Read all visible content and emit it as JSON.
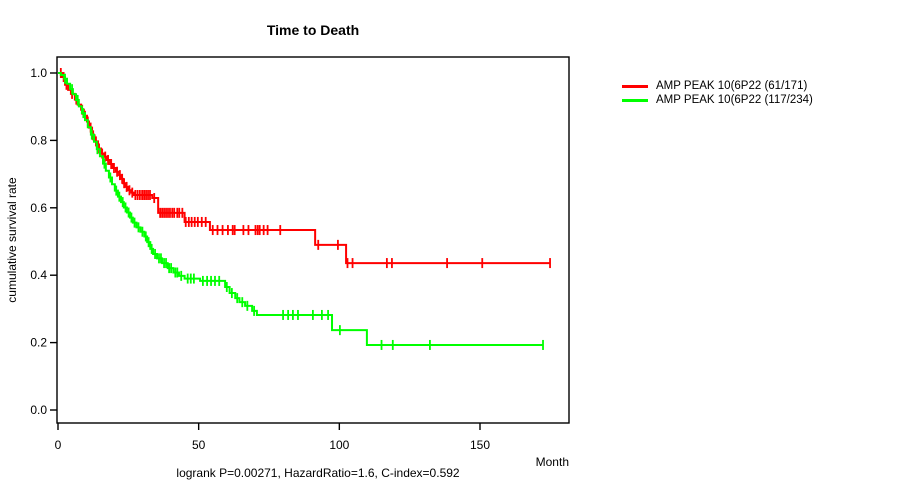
{
  "chart_data": {
    "type": "line",
    "subtype": "kaplan-meier-step",
    "title": "Time to Death",
    "xlabel": "Month",
    "ylabel": "cumulative survival rate",
    "xticks": [
      0,
      50,
      100,
      150
    ],
    "yticks": [
      0.0,
      0.2,
      0.4,
      0.6,
      0.8,
      1.0
    ],
    "xlim": [
      0,
      182
    ],
    "ylim": [
      0.0,
      1.0
    ],
    "grid": false,
    "legend_position": "right-outside",
    "annotation": "logrank P=0.00271, HazardRatio=1.6, C-index=0.592",
    "series": [
      {
        "name": "AMP PEAK 10(6P22 (61/171)",
        "color": "#ff0000",
        "end": 174.9,
        "steps": [
          [
            0,
            1.0
          ],
          [
            1.4,
            0.988
          ],
          [
            2.5,
            0.965
          ],
          [
            3.6,
            0.95
          ],
          [
            4.6,
            0.938
          ],
          [
            6.0,
            0.921
          ],
          [
            7.0,
            0.906
          ],
          [
            8.2,
            0.891
          ],
          [
            9.2,
            0.873
          ],
          [
            10.3,
            0.856
          ],
          [
            11.0,
            0.838
          ],
          [
            12.1,
            0.815
          ],
          [
            13.0,
            0.797
          ],
          [
            14.2,
            0.776
          ],
          [
            15.3,
            0.761
          ],
          [
            16.3,
            0.752
          ],
          [
            17.4,
            0.742
          ],
          [
            18.5,
            0.73
          ],
          [
            19.5,
            0.718
          ],
          [
            20.6,
            0.707
          ],
          [
            21.7,
            0.697
          ],
          [
            22.4,
            0.686
          ],
          [
            23.1,
            0.673
          ],
          [
            24.0,
            0.662
          ],
          [
            25.0,
            0.652
          ],
          [
            26.0,
            0.645
          ],
          [
            27.0,
            0.638
          ],
          [
            33.5,
            0.629
          ],
          [
            35.6,
            0.585
          ],
          [
            45.0,
            0.558
          ],
          [
            54.0,
            0.534
          ],
          [
            91.4,
            0.49
          ],
          [
            102.4,
            0.436
          ]
        ],
        "censors": [
          1.0,
          2.0,
          3.0,
          5.0,
          6.5,
          8.6,
          9.6,
          10.6,
          11.6,
          12.5,
          13.5,
          14.6,
          15.7,
          16.8,
          17.8,
          18.9,
          19.9,
          21.0,
          22.0,
          22.8,
          23.5,
          24.4,
          25.4,
          26.4,
          27.5,
          28.3,
          29.1,
          29.9,
          30.6,
          31.3,
          32.0,
          32.7,
          34.2,
          36.3,
          37.0,
          37.7,
          38.4,
          39.1,
          39.8,
          40.6,
          41.3,
          42.4,
          43.1,
          44.2,
          45.4,
          46.5,
          47.5,
          48.6,
          49.7,
          51.1,
          52.5,
          55.0,
          56.7,
          58.5,
          60.4,
          62.1,
          62.8,
          65.9,
          67.7,
          70.2,
          71.0,
          71.7,
          73.1,
          74.5,
          79.0,
          92.5,
          99.5,
          102.9,
          104.7,
          116.9,
          118.7,
          138.3,
          150.8,
          174.9
        ]
      },
      {
        "name": "AMP PEAK 10(6P22 (117/234)",
        "color": "#00ff00",
        "end": 172.4,
        "steps": [
          [
            0,
            1.0
          ],
          [
            1.0,
            0.994
          ],
          [
            2.2,
            0.983
          ],
          [
            3.2,
            0.968
          ],
          [
            4.3,
            0.952
          ],
          [
            5.3,
            0.937
          ],
          [
            6.4,
            0.92
          ],
          [
            7.4,
            0.901
          ],
          [
            8.5,
            0.881
          ],
          [
            9.6,
            0.86
          ],
          [
            10.6,
            0.839
          ],
          [
            11.7,
            0.817
          ],
          [
            12.8,
            0.796
          ],
          [
            13.8,
            0.774
          ],
          [
            14.9,
            0.753
          ],
          [
            16.0,
            0.731
          ],
          [
            17.0,
            0.71
          ],
          [
            18.1,
            0.69
          ],
          [
            19.2,
            0.67
          ],
          [
            20.2,
            0.651
          ],
          [
            21.3,
            0.633
          ],
          [
            22.4,
            0.617
          ],
          [
            23.4,
            0.601
          ],
          [
            24.5,
            0.586
          ],
          [
            25.6,
            0.571
          ],
          [
            26.6,
            0.556
          ],
          [
            27.9,
            0.542
          ],
          [
            29.3,
            0.529
          ],
          [
            30.7,
            0.515
          ],
          [
            31.7,
            0.498
          ],
          [
            32.8,
            0.478
          ],
          [
            33.8,
            0.463
          ],
          [
            35.2,
            0.45
          ],
          [
            37.0,
            0.436
          ],
          [
            39.0,
            0.421
          ],
          [
            41.0,
            0.408
          ],
          [
            43.0,
            0.398
          ],
          [
            45.0,
            0.39
          ],
          [
            50.5,
            0.383
          ],
          [
            59.4,
            0.365
          ],
          [
            61.0,
            0.347
          ],
          [
            63.0,
            0.332
          ],
          [
            64.5,
            0.32
          ],
          [
            66.5,
            0.309
          ],
          [
            69.0,
            0.294
          ],
          [
            70.7,
            0.282
          ],
          [
            97.4,
            0.237
          ],
          [
            109.8,
            0.193
          ]
        ],
        "censors": [
          2.5,
          5.0,
          7.0,
          9.0,
          12.0,
          14.0,
          16.5,
          18.6,
          20.7,
          21.8,
          23.0,
          24.0,
          25.1,
          26.1,
          27.2,
          28.6,
          30.0,
          31.2,
          32.2,
          33.3,
          34.5,
          35.9,
          36.6,
          37.7,
          38.4,
          39.5,
          40.2,
          41.7,
          42.4,
          43.8,
          46.1,
          47.2,
          48.3,
          51.5,
          53.0,
          54.4,
          55.8,
          57.3,
          60.0,
          61.8,
          63.7,
          65.5,
          67.3,
          69.7,
          80.0,
          81.8,
          83.5,
          85.3,
          90.6,
          93.8,
          96.0,
          100.2,
          115.0,
          119.0,
          132.2,
          172.4
        ]
      }
    ]
  }
}
